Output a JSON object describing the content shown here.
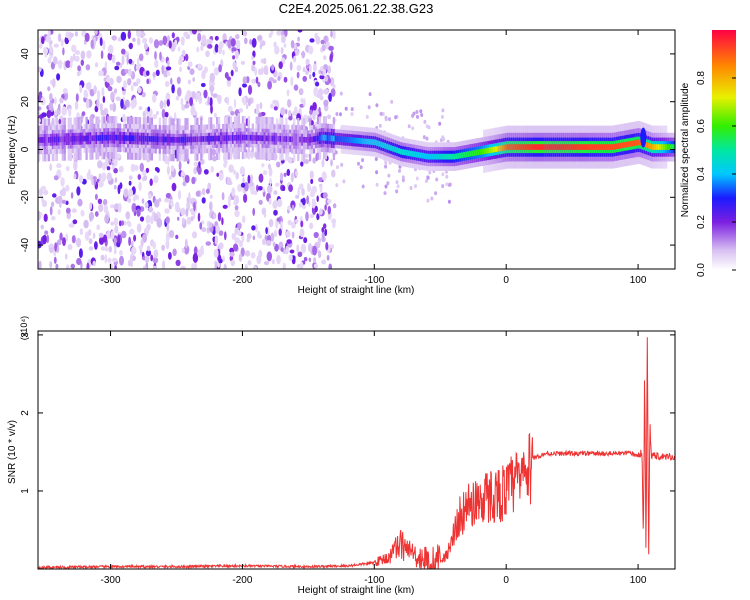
{
  "title": "C2E4.2025.061.22.38.G23",
  "chart_data": [
    {
      "type": "heatmap",
      "xlabel": "Height of straight line (km)",
      "ylabel": "Frequency (Hz)",
      "xlim": [
        -355,
        128
      ],
      "ylim": [
        -50,
        50
      ],
      "xticks": [
        "-300",
        "-200",
        "-100",
        "0",
        "100"
      ],
      "xtick_values": [
        -300,
        -200,
        -100,
        0,
        100
      ],
      "yticks": [
        "40",
        "20",
        "0",
        "-20",
        "-40"
      ],
      "ytick_values": [
        40,
        20,
        0,
        -20,
        -40
      ],
      "colorbar": {
        "label": "Normalized spectral amplitude",
        "range": [
          0,
          1
        ],
        "ticks": [
          "0.0",
          "0.2",
          "0.4",
          "0.6",
          "0.8"
        ],
        "tick_values": [
          0,
          0.2,
          0.4,
          0.6,
          0.8
        ]
      },
      "ridge": {
        "x": [
          -350,
          -300,
          -250,
          -200,
          -150,
          -140,
          -120,
          -100,
          -80,
          -60,
          -40,
          -20,
          -10,
          0,
          20,
          40,
          60,
          80,
          100,
          110,
          128
        ],
        "frequency": [
          4,
          5,
          4,
          5,
          4,
          5,
          4,
          3,
          -1,
          -3,
          -3,
          -1,
          0,
          1,
          1,
          1,
          1,
          1,
          3,
          1,
          1
        ],
        "amplitude": [
          0.15,
          0.2,
          0.18,
          0.15,
          0.12,
          0.3,
          0.35,
          0.42,
          0.45,
          0.4,
          0.5,
          0.6,
          0.7,
          0.9,
          0.95,
          0.95,
          0.93,
          0.92,
          0.9,
          0.8,
          0.5
        ]
      }
    },
    {
      "type": "line",
      "xlabel": "Height of straight line (km)",
      "ylabel": "SNR (10 * v/v)",
      "yscale_label": "(x10⁴)",
      "xlim": [
        -355,
        128
      ],
      "ylim": [
        0,
        3.05
      ],
      "xticks": [
        "-300",
        "-200",
        "-100",
        "0",
        "100"
      ],
      "xtick_values": [
        -300,
        -200,
        -100,
        0,
        100
      ],
      "yticks": [
        "1",
        "2",
        "3"
      ],
      "ytick_values": [
        1,
        2,
        3
      ],
      "series": [
        {
          "color": "#ee3333",
          "x": [
            -355,
            -300,
            -250,
            -200,
            -150,
            -120,
            -100,
            -90,
            -80,
            -75,
            -70,
            -60,
            -55,
            -50,
            -45,
            -40,
            -35,
            -30,
            -25,
            -20,
            -10,
            0,
            10,
            20,
            30,
            50,
            80,
            95,
            100,
            103,
            104,
            105,
            106,
            107,
            108,
            109,
            110,
            115,
            128
          ],
          "y": [
            0.02,
            0.03,
            0.03,
            0.04,
            0.03,
            0.04,
            0.08,
            0.15,
            0.35,
            0.28,
            0.2,
            0.1,
            0.08,
            0.12,
            0.2,
            0.5,
            0.75,
            0.85,
            0.95,
            1.0,
            1.05,
            1.1,
            1.3,
            1.42,
            1.48,
            1.48,
            1.48,
            1.48,
            1.45,
            1.5,
            0.3,
            2.6,
            0.1,
            3.0,
            0.1,
            1.9,
            1.47,
            1.45,
            1.44
          ]
        }
      ]
    }
  ]
}
